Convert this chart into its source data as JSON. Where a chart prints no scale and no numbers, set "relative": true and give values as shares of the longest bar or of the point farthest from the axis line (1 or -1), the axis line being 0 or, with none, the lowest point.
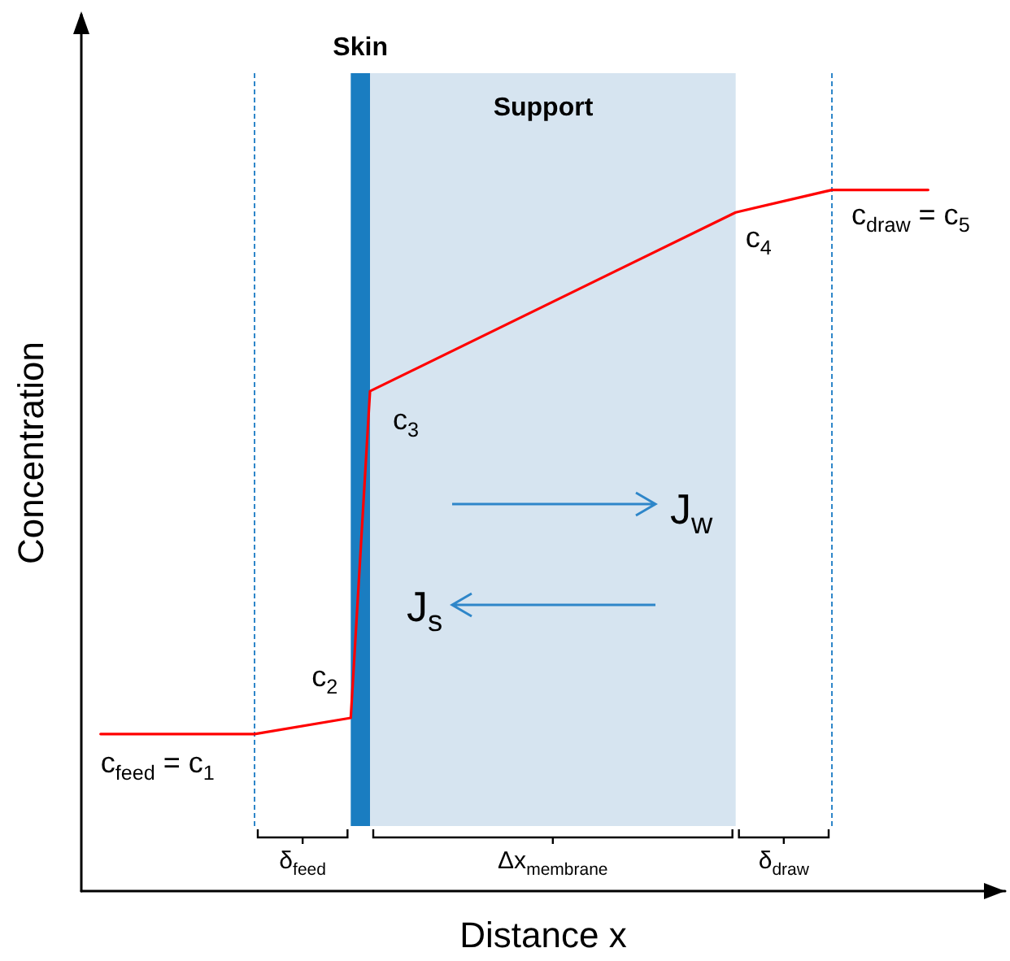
{
  "chart_data": {
    "type": "line",
    "relative": true,
    "xlabel": "Distance x",
    "ylabel": "Concentration",
    "categories": [
      null,
      null,
      null,
      null,
      null,
      null,
      null,
      null,
      null,
      null,
      null,
      null,
      null,
      null,
      null,
      null,
      null,
      null,
      null,
      null,
      null,
      null,
      null,
      null,
      null,
      null,
      null,
      null,
      null,
      null,
      null,
      null,
      null,
      null,
      null,
      null,
      null,
      null,
      null,
      null,
      null,
      null,
      null,
      null,
      null,
      null,
      null,
      null,
      null
    ],
    "series": [
      {
        "color": "#ff0000",
        "values": [
          null,
          0.224,
          null,
          null,
          null,
          null,
          null,
          null,
          null,
          0.224,
          null,
          null,
          null,
          null,
          0.247,
          0.713,
          null,
          null,
          null,
          null,
          null,
          null,
          null,
          null,
          null,
          null,
          null,
          null,
          null,
          null,
          null,
          null,
          null,
          null,
          0.968,
          null,
          null,
          null,
          null,
          1,
          null,
          null,
          null,
          null,
          1,
          null,
          null,
          null,
          null
        ]
      }
    ],
    "marker": "none",
    "line_style": "solid",
    "annotations": [
      "c$_{feed}$ = c$_{1}$",
      "c$_{2}$",
      "c$_{3}$",
      "c$_{4}$",
      "c$_{draw}$ = c$_{5}$",
      "δ$_{feed}$",
      "Δx$_{membrane}$",
      "δ$_{draw}$",
      "J$_{w}$",
      "J$_{s}$",
      "Skin",
      "Support"
    ]
  }
}
